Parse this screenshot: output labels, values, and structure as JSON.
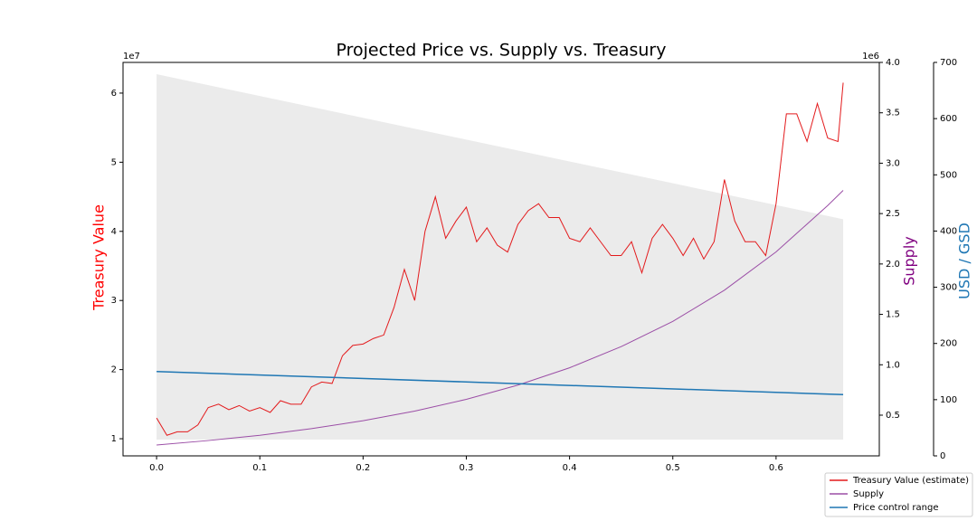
{
  "chart_data": {
    "type": "line",
    "title": "Projected Price vs. Supply vs. Treasury",
    "xlim": [
      -0.0325,
      0.7
    ],
    "xticks": [
      {
        "value": 0,
        "label": "0.0"
      },
      0.1,
      0.2,
      0.3,
      0.4,
      0.5,
      0.6
    ],
    "ylim": [
      0.752,
      6.444
    ],
    "yticks": [
      1,
      2,
      3,
      4,
      5,
      6
    ],
    "y_offset": "1e7",
    "ylabel": "Treasury Value",
    "ylabel_color": "#ff0000",
    "y2lim": [
      0.096,
      4.0
    ],
    "y2ticks": [
      0.5,
      {
        "value": 1,
        "label": "1.0"
      },
      1.5,
      {
        "value": 2,
        "label": "2.0"
      },
      2.5,
      {
        "value": 3,
        "label": "3.0"
      },
      3.5,
      {
        "value": 4,
        "label": "4.0"
      }
    ],
    "y2_offset": "1e6",
    "y2label": "Supply",
    "y2label_color": "#800080",
    "y3lim": [
      0,
      700
    ],
    "y3ticks": [
      0,
      100,
      200,
      300,
      400,
      500,
      600,
      700
    ],
    "y3label": "USD / GSD",
    "y3label_color": "#1f77b4",
    "legend": "lower right",
    "series": [
      {
        "name": "Treasury Value (estimate)",
        "color": "#e31a1c",
        "axis": "y",
        "x": [
          0,
          0.01,
          0.02,
          0.03,
          0.04,
          0.05,
          0.06,
          0.07,
          0.08,
          0.09,
          0.1,
          0.11,
          0.12,
          0.13,
          0.14,
          0.15,
          0.16,
          0.17,
          0.18,
          0.19,
          0.2,
          0.21,
          0.22,
          0.23,
          0.24,
          0.25,
          0.26,
          0.27,
          0.28,
          0.29,
          0.3,
          0.31,
          0.32,
          0.33,
          0.34,
          0.35,
          0.36,
          0.37,
          0.38,
          0.39,
          0.4,
          0.41,
          0.42,
          0.43,
          0.44,
          0.45,
          0.46,
          0.47,
          0.48,
          0.49,
          0.5,
          0.51,
          0.52,
          0.53,
          0.54,
          0.55,
          0.56,
          0.57,
          0.58,
          0.59,
          0.6,
          0.61,
          0.62,
          0.63,
          0.64,
          0.65,
          0.66,
          0.665
        ],
        "values": [
          1.3,
          1.05,
          1.1,
          1.1,
          1.2,
          1.45,
          1.5,
          1.42,
          1.48,
          1.4,
          1.45,
          1.38,
          1.55,
          1.5,
          1.5,
          1.75,
          1.82,
          1.8,
          2.2,
          2.35,
          2.37,
          2.45,
          2.5,
          2.9,
          3.45,
          3.0,
          4.0,
          4.5,
          3.9,
          4.15,
          4.35,
          3.85,
          4.05,
          3.8,
          3.7,
          4.1,
          4.3,
          4.4,
          4.2,
          4.2,
          3.9,
          3.85,
          4.05,
          3.85,
          3.65,
          3.65,
          3.85,
          3.4,
          3.9,
          4.1,
          3.9,
          3.65,
          3.9,
          3.6,
          3.85,
          4.75,
          4.15,
          3.85,
          3.85,
          3.65,
          4.4,
          5.7,
          5.7,
          5.3,
          5.85,
          5.35,
          5.3,
          6.15
        ]
      },
      {
        "name": "Supply",
        "color": "#9b4ea6",
        "axis": "y2",
        "x": [
          0,
          0.05,
          0.1,
          0.15,
          0.2,
          0.25,
          0.3,
          0.35,
          0.4,
          0.45,
          0.5,
          0.55,
          0.6,
          0.65,
          0.665
        ],
        "values": [
          0.204,
          0.248,
          0.3,
          0.366,
          0.445,
          0.54,
          0.657,
          0.798,
          0.97,
          1.18,
          1.43,
          1.74,
          2.12,
          2.58,
          2.73
        ]
      },
      {
        "name": "Price control range",
        "color": "#1f77b4",
        "axis": "y3",
        "fill": "#ebebeb",
        "x": [
          0,
          0.665
        ],
        "values": [
          150,
          109
        ],
        "upper": [
          679,
          421
        ],
        "lower": [
          29,
          29
        ]
      }
    ]
  }
}
